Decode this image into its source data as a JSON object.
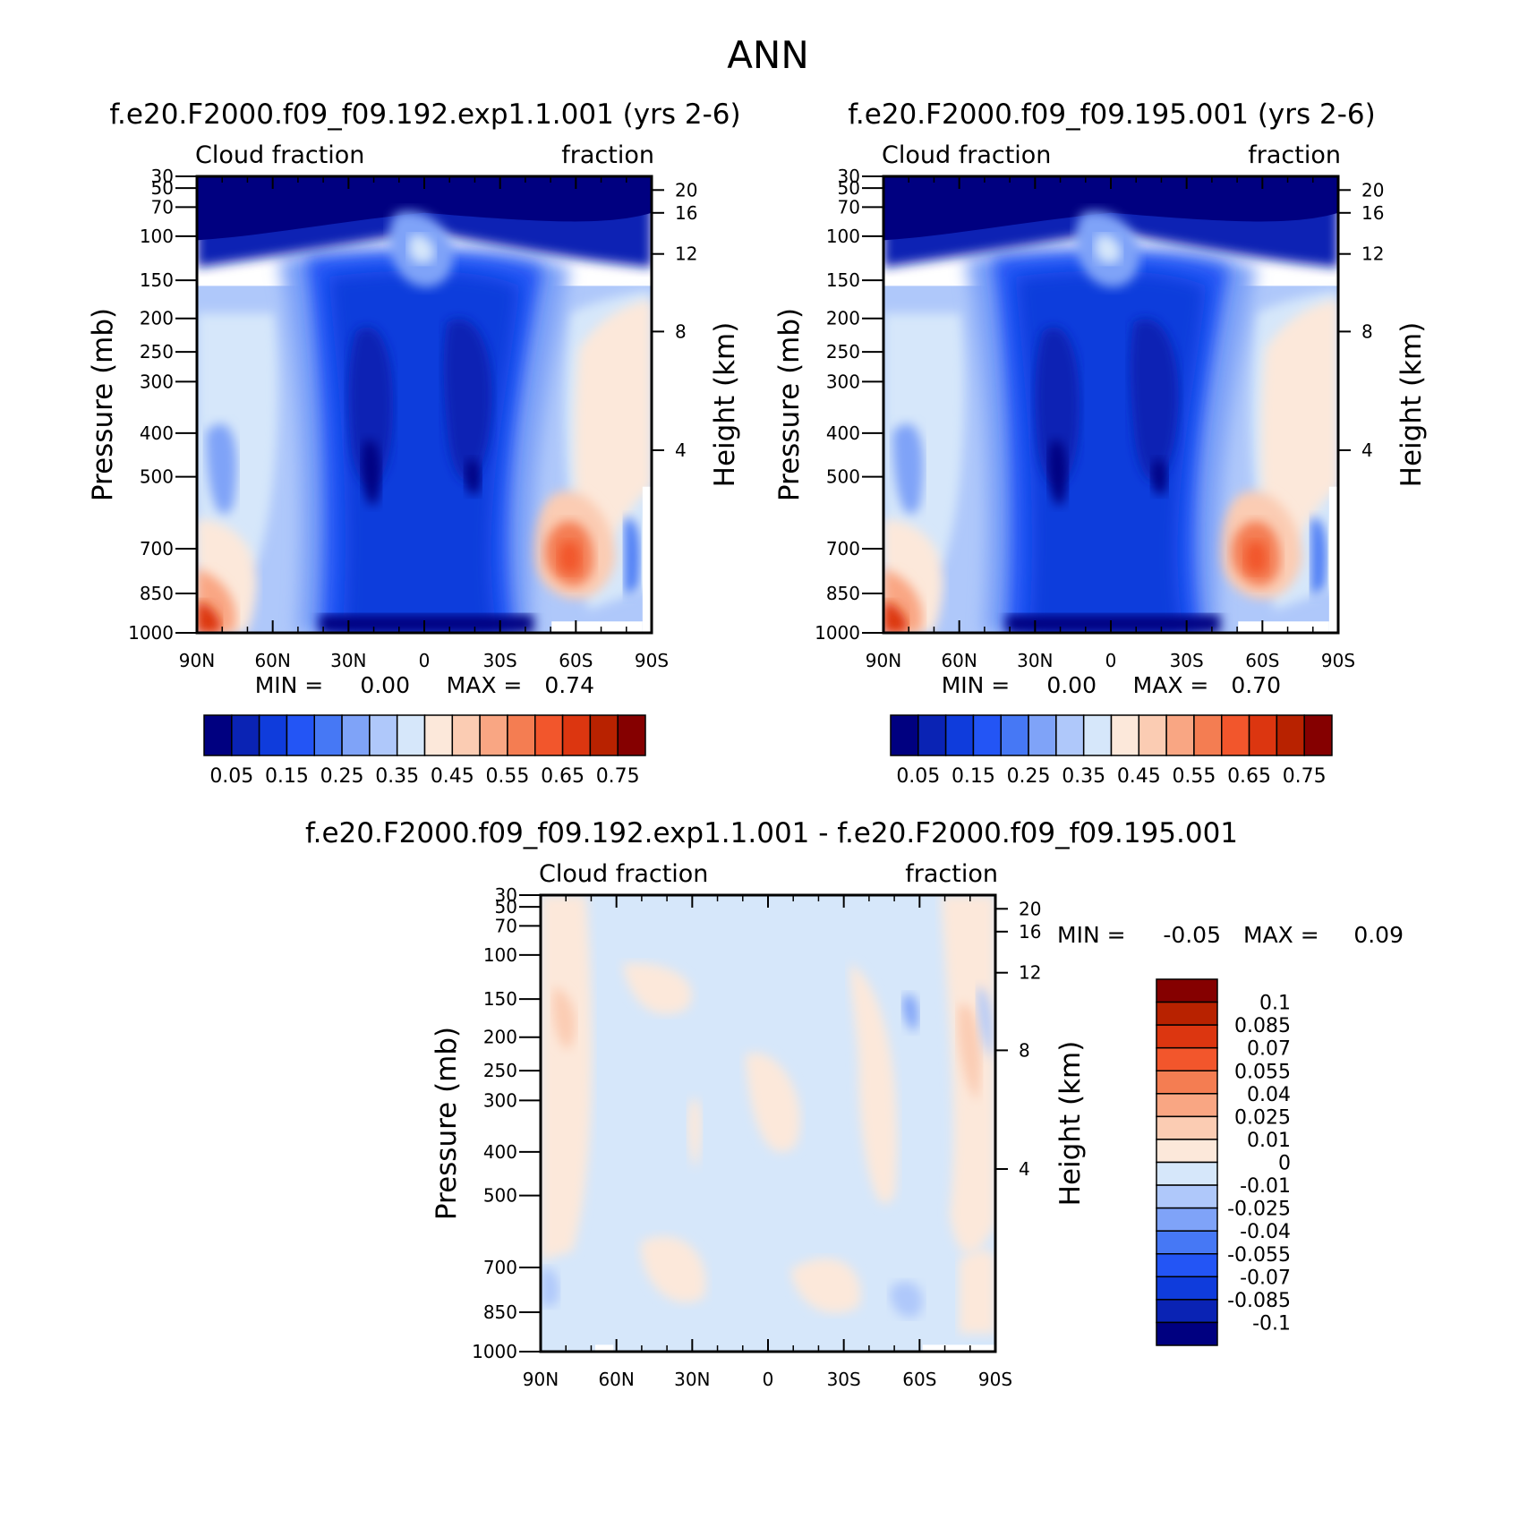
{
  "figure_title": "ANN",
  "colors": {
    "seq": [
      "#000080",
      "#0A23B4",
      "#0F3CDC",
      "#2355F5",
      "#4678F5",
      "#7FA3F8",
      "#AFC8FA",
      "#D6E7FA",
      "#FCE8DA",
      "#FBCCB3",
      "#F9A683",
      "#F47D52",
      "#F2562C",
      "#DC3610",
      "#B82200",
      "#850000"
    ],
    "diff": [
      "#000080",
      "#0A23B4",
      "#0F3CDC",
      "#2355F5",
      "#4678F5",
      "#7FA3F8",
      "#AFC8FA",
      "#D6E7FA",
      "#FCE8DA",
      "#FBCCB3",
      "#F9A683",
      "#F47D52",
      "#F2562C",
      "#DC3610",
      "#B82200",
      "#850000"
    ]
  },
  "chart_data": [
    {
      "type": "heatmap",
      "title": "f.e20.F2000.f09_f09.192.exp1.1.001 (yrs 2-6)",
      "left_subtitle": "Cloud fraction",
      "right_subtitle": "fraction",
      "ylabel": "Pressure (mb)",
      "right_ylabel": "Height (km)",
      "x_ticks": [
        "90N",
        "60N",
        "30N",
        "0",
        "30S",
        "60S",
        "90S"
      ],
      "y_ticks": [
        "30",
        "50",
        "70",
        "100",
        "150",
        "200",
        "250",
        "300",
        "400",
        "500",
        "700",
        "850",
        "1000"
      ],
      "height_ticks": [
        "20",
        "16",
        "12",
        "8",
        "4"
      ],
      "min_label": "MIN =",
      "min_value": "0.00",
      "max_label": "MAX =",
      "max_value": "0.74",
      "colorbar_labels": [
        "0.05",
        "0.15",
        "0.25",
        "0.35",
        "0.45",
        "0.55",
        "0.65",
        "0.75"
      ],
      "xlim": [
        -90,
        90
      ],
      "ylim": [
        1000,
        30
      ],
      "min": 0.0,
      "max": 0.74
    },
    {
      "type": "heatmap",
      "title": "f.e20.F2000.f09_f09.195.001 (yrs 2-6)",
      "left_subtitle": "Cloud fraction",
      "right_subtitle": "fraction",
      "ylabel": "Pressure (mb)",
      "right_ylabel": "Height (km)",
      "x_ticks": [
        "90N",
        "60N",
        "30N",
        "0",
        "30S",
        "60S",
        "90S"
      ],
      "y_ticks": [
        "30",
        "50",
        "70",
        "100",
        "150",
        "200",
        "250",
        "300",
        "400",
        "500",
        "700",
        "850",
        "1000"
      ],
      "height_ticks": [
        "20",
        "16",
        "12",
        "8",
        "4"
      ],
      "min_label": "MIN =",
      "min_value": "0.00",
      "max_label": "MAX =",
      "max_value": "0.70",
      "colorbar_labels": [
        "0.05",
        "0.15",
        "0.25",
        "0.35",
        "0.45",
        "0.55",
        "0.65",
        "0.75"
      ],
      "xlim": [
        -90,
        90
      ],
      "ylim": [
        1000,
        30
      ],
      "min": 0.0,
      "max": 0.7
    },
    {
      "type": "heatmap",
      "title": "f.e20.F2000.f09_f09.192.exp1.1.001 - f.e20.F2000.f09_f09.195.001",
      "left_subtitle": "Cloud fraction",
      "right_subtitle": "fraction",
      "ylabel": "Pressure (mb)",
      "right_ylabel": "Height (km)",
      "x_ticks": [
        "90N",
        "60N",
        "30N",
        "0",
        "30S",
        "60S",
        "90S"
      ],
      "y_ticks": [
        "30",
        "50",
        "70",
        "100",
        "150",
        "200",
        "250",
        "300",
        "400",
        "500",
        "700",
        "850",
        "1000"
      ],
      "height_ticks": [
        "20",
        "16",
        "12",
        "8",
        "4"
      ],
      "min_label": "MIN =",
      "min_value": "-0.05",
      "max_label": "MAX =",
      "max_value": "0.09",
      "colorbar_labels": [
        "0.1",
        "0.085",
        "0.07",
        "0.055",
        "0.04",
        "0.025",
        "0.01",
        "0",
        "-0.01",
        "-0.025",
        "-0.04",
        "-0.055",
        "-0.07",
        "-0.085",
        "-0.1"
      ],
      "xlim": [
        -90,
        90
      ],
      "ylim": [
        1000,
        30
      ],
      "min": -0.05,
      "max": 0.09
    }
  ]
}
